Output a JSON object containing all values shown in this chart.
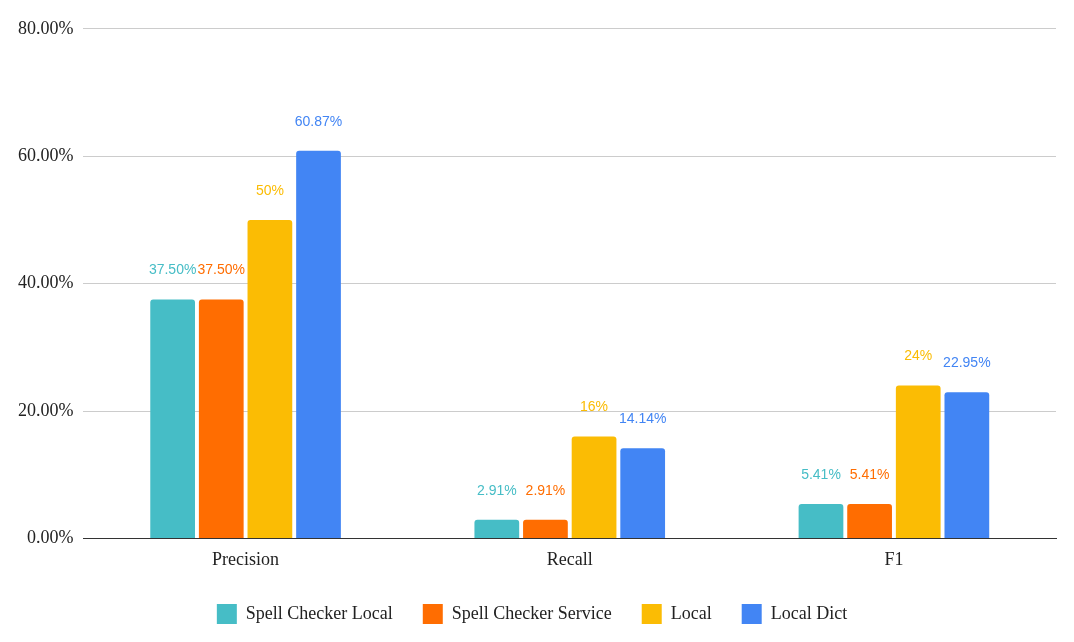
{
  "chart_data": {
    "type": "bar",
    "categories": [
      "Precision",
      "Recall",
      "F1"
    ],
    "series": [
      {
        "name": "Spell Checker Local",
        "color": "#46bdc6",
        "values": [
          37.5,
          2.91,
          5.41
        ],
        "value_labels": [
          "37.50%",
          "2.91%",
          "5.41%"
        ]
      },
      {
        "name": "Spell Checker Service",
        "color": "#ff6d01",
        "values": [
          37.5,
          2.91,
          5.41
        ],
        "value_labels": [
          "37.50%",
          "2.91%",
          "5.41%"
        ]
      },
      {
        "name": "Local",
        "color": "#fbbc04",
        "values": [
          50,
          16,
          24
        ],
        "value_labels": [
          "50%",
          "16%",
          "24%"
        ]
      },
      {
        "name": "Local Dict",
        "color": "#4285f4",
        "values": [
          60.87,
          14.14,
          22.95
        ],
        "value_labels": [
          "60.87%",
          "14.14%",
          "22.95%"
        ]
      }
    ],
    "ylim": [
      0,
      80
    ],
    "yticks": [
      {
        "value": 0,
        "label": "0.00%"
      },
      {
        "value": 20,
        "label": "20.00%"
      },
      {
        "value": 40,
        "label": "40.00%"
      },
      {
        "value": 60,
        "label": "60.00%"
      },
      {
        "value": 80,
        "label": "80.00%"
      }
    ],
    "grid": "y",
    "legend": "bottom"
  }
}
